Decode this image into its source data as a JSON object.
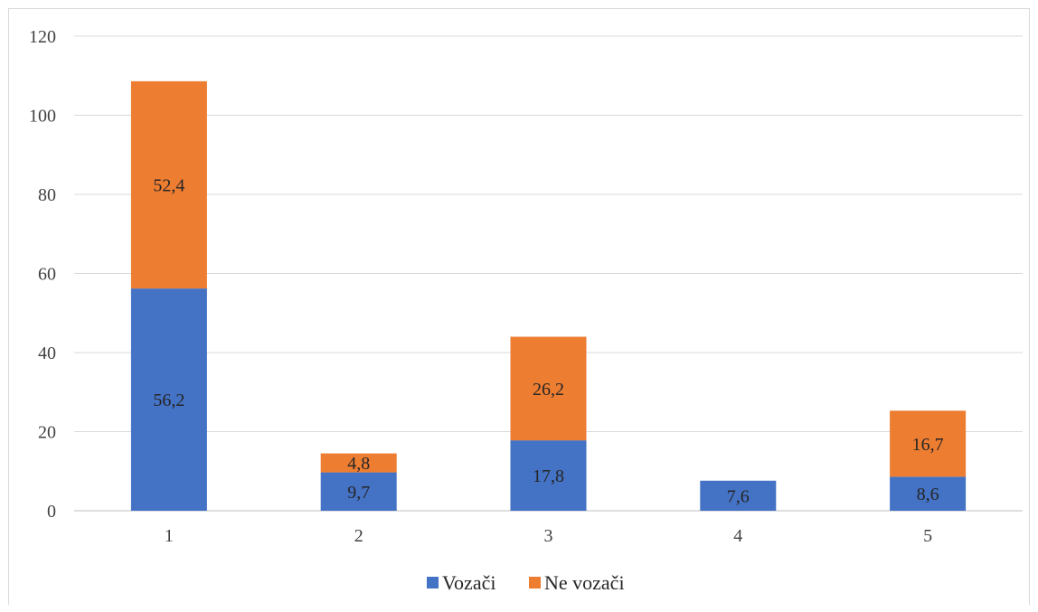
{
  "chart_data": {
    "type": "bar",
    "stacked": true,
    "title": "",
    "xlabel": "",
    "ylabel": "",
    "categories": [
      "1",
      "2",
      "3",
      "4",
      "5"
    ],
    "series": [
      {
        "name": "Vozači",
        "color": "#4472C4",
        "values": [
          56.2,
          9.7,
          17.8,
          7.6,
          8.6
        ],
        "labels": [
          "56,2",
          "9,7",
          "17,8",
          "7,6",
          "8,6"
        ]
      },
      {
        "name": "Ne vozači",
        "color": "#ED7D31",
        "values": [
          52.4,
          4.8,
          26.2,
          null,
          16.7
        ],
        "labels": [
          "52,4",
          "4,8",
          "26,2",
          "",
          "16,7"
        ]
      }
    ],
    "ylim": [
      0,
      120
    ],
    "yticks": [
      "0",
      "20",
      "40",
      "60",
      "80",
      "100",
      "120"
    ],
    "grid": true,
    "legend_position": "bottom"
  }
}
